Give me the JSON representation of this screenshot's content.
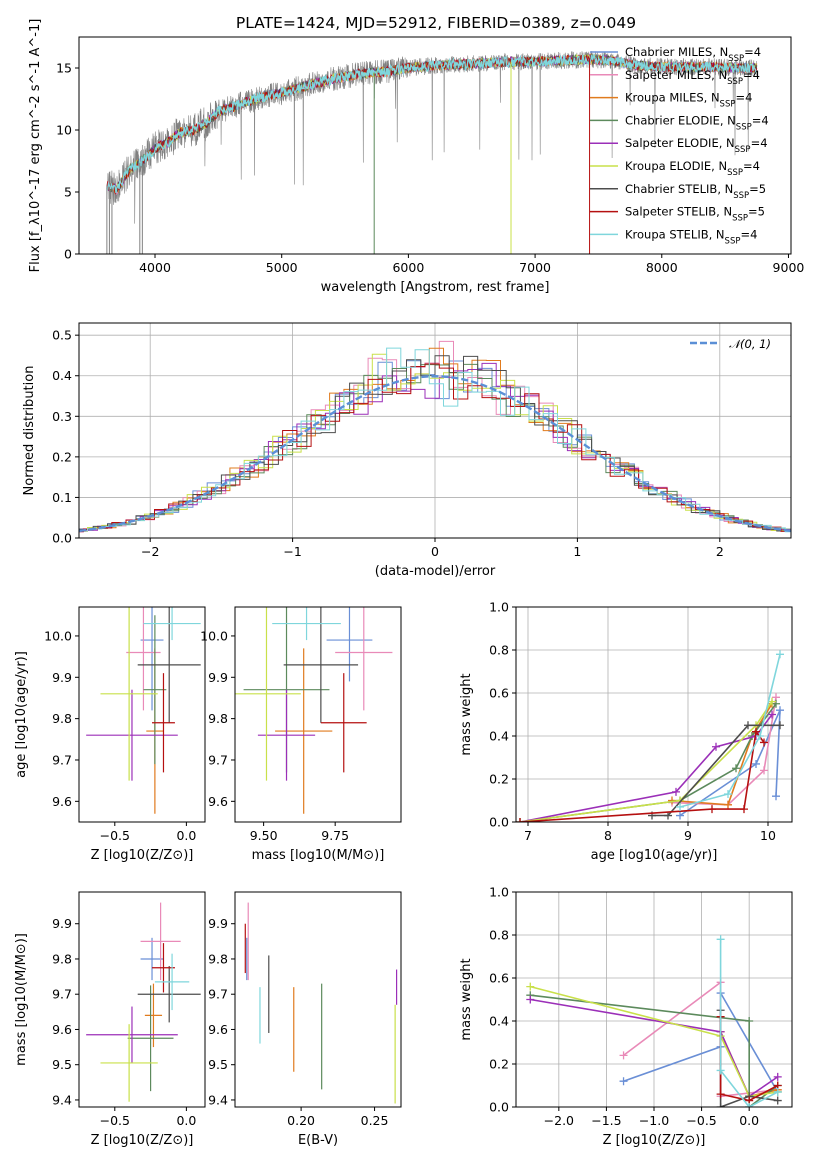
{
  "figure_title": "PLATE=1424, MJD=52912, FIBERID=0389, z=0.049",
  "model_colors": [
    "#6a8fd6",
    "#e98ab8",
    "#e07b1e",
    "#5c8a5c",
    "#9b2fb8",
    "#c9e04a",
    "#4d4d4d",
    "#b51010",
    "#7fd6dc"
  ],
  "chart_data": [
    {
      "panel": "spectrum",
      "type": "line",
      "xlabel": "wavelength [Angstrom, rest frame]",
      "ylabel": "Flux [f_λ10^-17 erg cm^-2 s^-1 A^-1]",
      "xlim": [
        3400,
        9020
      ],
      "ylim": [
        0,
        17.5
      ],
      "x_ticks": [
        4000,
        5000,
        6000,
        7000,
        8000,
        9000
      ],
      "y_ticks": [
        0,
        5,
        10,
        15
      ],
      "grid": false,
      "legend": "top-right",
      "data_color": "#808080",
      "series": [
        {
          "name": "Chabrier MILES, N_SSP=4"
        },
        {
          "name": "Salpeter MILES, N_SSP=4"
        },
        {
          "name": "Kroupa MILES, N_SSP=4"
        },
        {
          "name": "Chabrier ELODIE, N_SSP=4"
        },
        {
          "name": "Salpeter ELODIE, N_SSP=4"
        },
        {
          "name": "Kroupa ELODIE, N_SSP=4"
        },
        {
          "name": "Chabrier STELIB, N_SSP=5"
        },
        {
          "name": "Salpeter STELIB, N_SSP=5"
        },
        {
          "name": "Kroupa STELIB, N_SSP=4"
        }
      ],
      "continuum": {
        "x": [
          3620,
          3700,
          3800,
          3900,
          4000,
          4100,
          4200,
          4300,
          4400,
          4500,
          4600,
          4700,
          4800,
          4900,
          5000,
          5200,
          5400,
          5600,
          5800,
          6000,
          6200,
          6400,
          6600,
          6800,
          7000,
          7200,
          7400,
          7600,
          7800,
          8000,
          8200,
          8400,
          8600,
          8750
        ],
        "y": [
          5.5,
          5.2,
          6.8,
          7.5,
          8.5,
          9.0,
          9.8,
          10.0,
          10.5,
          11.5,
          11.8,
          12.2,
          12.5,
          12.8,
          13.0,
          13.6,
          14.1,
          14.5,
          14.7,
          15.0,
          15.2,
          15.3,
          15.4,
          15.5,
          15.5,
          15.6,
          15.7,
          15.6,
          15.2,
          15.1,
          15.1,
          15.1,
          15.0,
          15.0
        ]
      },
      "dropouts_x": [
        3620,
        3640,
        3660,
        3880,
        3900,
        5730,
        6810,
        7430
      ]
    },
    {
      "panel": "residuals",
      "type": "step",
      "xlabel": "(data-model)/error",
      "ylabel": "Normed distribution",
      "xlim": [
        -2.5,
        2.5
      ],
      "ylim": [
        0,
        0.53
      ],
      "x_ticks": [
        -2,
        -1,
        0,
        1,
        2
      ],
      "y_ticks": [
        0.0,
        0.1,
        0.2,
        0.3,
        0.4,
        0.5
      ],
      "grid": true,
      "legend": "top-right",
      "gauss_label": "𝒩(0, 1)",
      "gauss_color": "#5b8fd6",
      "bin_width": 0.1
    },
    {
      "panel": "age_vs_Z",
      "type": "errorbar",
      "xlabel": "Z [log10(Z/Z⊙)]",
      "ylabel": "age [log10(age/yr)]",
      "xlim": [
        -0.75,
        0.13
      ],
      "ylim": [
        9.55,
        10.07
      ],
      "x_ticks": [
        -0.5,
        0.0
      ],
      "y_ticks": [
        9.6,
        9.7,
        9.8,
        9.9,
        10.0
      ],
      "points": [
        {
          "x": -0.24,
          "xe": 0.08,
          "y": 9.99,
          "ye": 0.17
        },
        {
          "x": -0.3,
          "xe": 0.12,
          "y": 9.96,
          "ye": 0.14
        },
        {
          "x": -0.22,
          "xe": 0.06,
          "y": 9.77,
          "ye": 0.2
        },
        {
          "x": -0.22,
          "xe": 0.08,
          "y": 9.87,
          "ye": 0.18
        },
        {
          "x": -0.38,
          "xe": 0.32,
          "y": 9.76,
          "ye": 0.11
        },
        {
          "x": -0.4,
          "xe": 0.2,
          "y": 9.86,
          "ye": 0.21
        },
        {
          "x": -0.12,
          "xe": 0.22,
          "y": 9.93,
          "ye": 0.14
        },
        {
          "x": -0.16,
          "xe": 0.08,
          "y": 9.79,
          "ye": 0.12
        },
        {
          "x": -0.1,
          "xe": 0.2,
          "y": 10.03,
          "ye": 0.04
        }
      ]
    },
    {
      "panel": "age_vs_mass",
      "type": "errorbar",
      "xlabel": "mass [log10(M/M⊙)]",
      "ylabel": "",
      "xlim": [
        9.4,
        9.98
      ],
      "ylim": [
        9.55,
        10.07
      ],
      "x_ticks": [
        9.5,
        9.75
      ],
      "y_ticks": [
        9.6,
        9.7,
        9.8,
        9.9,
        10.0
      ],
      "points": [
        {
          "x": 9.8,
          "xe": 0.08,
          "y": 9.99,
          "ye": 0.1
        },
        {
          "x": 9.85,
          "xe": 0.1,
          "y": 9.96,
          "ye": 0.14
        },
        {
          "x": 9.64,
          "xe": 0.1,
          "y": 9.77,
          "ye": 0.2
        },
        {
          "x": 9.58,
          "xe": 0.15,
          "y": 9.87,
          "ye": 0.2
        },
        {
          "x": 9.58,
          "xe": 0.1,
          "y": 9.76,
          "ye": 0.11
        },
        {
          "x": 9.51,
          "xe": 0.12,
          "y": 9.86,
          "ye": 0.21
        },
        {
          "x": 9.7,
          "xe": 0.13,
          "y": 9.93,
          "ye": 0.14
        },
        {
          "x": 9.78,
          "xe": 0.08,
          "y": 9.79,
          "ye": 0.12
        },
        {
          "x": 9.65,
          "xe": 0.12,
          "y": 10.03,
          "ye": 0.04
        }
      ]
    },
    {
      "panel": "massweight_vs_age",
      "type": "line",
      "xlabel": "age [log10(age/yr)]",
      "ylabel": "mass weight",
      "xlim": [
        6.85,
        10.3
      ],
      "ylim": [
        0,
        1.0
      ],
      "x_ticks": [
        7,
        8,
        9,
        10
      ],
      "y_ticks": [
        0.0,
        0.2,
        0.4,
        0.6,
        0.8,
        1.0
      ],
      "grid": true,
      "series": [
        {
          "x": [
            8.9,
            9.85,
            10.15,
            10.1
          ],
          "y": [
            0.03,
            0.27,
            0.52,
            0.12
          ]
        },
        {
          "x": [
            8.8,
            9.5,
            9.95,
            10.1
          ],
          "y": [
            0.09,
            0.08,
            0.24,
            0.58
          ]
        },
        {
          "x": [
            8.8,
            9.5,
            9.8,
            10.05
          ],
          "y": [
            0.1,
            0.08,
            0.4,
            0.55
          ]
        },
        {
          "x": [
            6.9,
            8.9,
            9.6,
            9.8,
            10.1
          ],
          "y": [
            0.0,
            0.1,
            0.25,
            0.4,
            0.55
          ]
        },
        {
          "x": [
            6.9,
            8.85,
            9.35,
            9.85,
            10.05
          ],
          "y": [
            0.0,
            0.14,
            0.35,
            0.4,
            0.5
          ]
        },
        {
          "x": [
            6.9,
            8.9,
            9.85,
            10.05
          ],
          "y": [
            0.0,
            0.1,
            0.45,
            0.56
          ]
        },
        {
          "x": [
            8.55,
            8.75,
            9.75,
            10.15
          ],
          "y": [
            0.03,
            0.03,
            0.45,
            0.45
          ]
        },
        {
          "x": [
            6.9,
            9.3,
            9.7,
            9.85,
            9.95
          ],
          "y": [
            0.0,
            0.06,
            0.06,
            0.42,
            0.37
          ]
        },
        {
          "x": [
            8.9,
            9.5,
            9.9,
            10.15
          ],
          "y": [
            0.07,
            0.13,
            0.4,
            0.78
          ]
        }
      ]
    },
    {
      "panel": "mass_vs_Z",
      "type": "errorbar",
      "xlabel": "Z [log10(Z/Z⊙)]",
      "ylabel": "mass [log10(M/M⊙)]",
      "xlim": [
        -0.75,
        0.13
      ],
      "ylim": [
        9.38,
        9.99
      ],
      "x_ticks": [
        -0.5,
        0.0
      ],
      "y_ticks": [
        9.4,
        9.5,
        9.6,
        9.7,
        9.8,
        9.9
      ],
      "points": [
        {
          "x": -0.24,
          "xe": 0.08,
          "y": 9.8,
          "ye": 0.06
        },
        {
          "x": -0.18,
          "xe": 0.14,
          "y": 9.85,
          "ye": 0.11
        },
        {
          "x": -0.23,
          "xe": 0.06,
          "y": 9.64,
          "ye": 0.09
        },
        {
          "x": -0.25,
          "xe": 0.16,
          "y": 9.575,
          "ye": 0.15
        },
        {
          "x": -0.38,
          "xe": 0.32,
          "y": 9.585,
          "ye": 0.08
        },
        {
          "x": -0.4,
          "xe": 0.2,
          "y": 9.505,
          "ye": 0.11
        },
        {
          "x": -0.12,
          "xe": 0.22,
          "y": 9.7,
          "ye": 0.08
        },
        {
          "x": -0.16,
          "xe": 0.08,
          "y": 9.775,
          "ye": 0.07
        },
        {
          "x": -0.1,
          "xe": 0.12,
          "y": 9.735,
          "ye": 0.08
        }
      ]
    },
    {
      "panel": "mass_vs_ebv",
      "type": "errorbar",
      "xlabel": "E(B-V)",
      "ylabel": "",
      "xlim": [
        0.155,
        0.268
      ],
      "ylim": [
        9.38,
        9.99
      ],
      "x_ticks": [
        0.2,
        0.25
      ],
      "y_ticks": [
        9.4,
        9.5,
        9.6,
        9.7,
        9.8,
        9.9
      ],
      "points": [
        {
          "x": 0.163,
          "xe": 0.0,
          "y": 9.8,
          "ye": 0.06
        },
        {
          "x": 0.164,
          "xe": 0.0,
          "y": 9.85,
          "ye": 0.11
        },
        {
          "x": 0.195,
          "xe": 0.0,
          "y": 9.6,
          "ye": 0.12
        },
        {
          "x": 0.214,
          "xe": 0.0,
          "y": 9.58,
          "ye": 0.15
        },
        {
          "x": 0.265,
          "xe": 0.0,
          "y": 9.72,
          "ye": 0.05
        },
        {
          "x": 0.264,
          "xe": 0.0,
          "y": 9.53,
          "ye": 0.14
        },
        {
          "x": 0.178,
          "xe": 0.0,
          "y": 9.7,
          "ye": 0.11
        },
        {
          "x": 0.162,
          "xe": 0.0,
          "y": 9.83,
          "ye": 0.07
        },
        {
          "x": 0.172,
          "xe": 0.0,
          "y": 9.64,
          "ye": 0.08
        }
      ]
    },
    {
      "panel": "massweight_vs_Z",
      "type": "line",
      "xlabel": "Z [log10(Z/Z⊙)]",
      "ylabel": "mass weight",
      "xlim": [
        -2.45,
        0.45
      ],
      "ylim": [
        0,
        1.0
      ],
      "x_ticks": [
        -2.0,
        -1.5,
        -1.0,
        -0.5,
        0.0
      ],
      "y_ticks": [
        0.0,
        0.2,
        0.4,
        0.6,
        0.8,
        1.0
      ],
      "grid": true,
      "series": [
        {
          "x": [
            -1.32,
            -0.3,
            -0.3,
            0.3
          ],
          "y": [
            0.12,
            0.28,
            0.53,
            0.07
          ]
        },
        {
          "x": [
            -1.32,
            -0.3,
            -0.3,
            0.3
          ],
          "y": [
            0.24,
            0.58,
            0.05,
            0.08
          ]
        },
        {
          "x": [
            -0.3,
            0.0,
            0.3
          ],
          "y": [
            0.35,
            0.05,
            0.08
          ]
        },
        {
          "x": [
            -2.3,
            0.0,
            0.0,
            0.3
          ],
          "y": [
            0.52,
            0.4,
            0.0,
            0.1
          ]
        },
        {
          "x": [
            -2.3,
            -0.3,
            0.0,
            0.3
          ],
          "y": [
            0.5,
            0.35,
            0.05,
            0.14
          ]
        },
        {
          "x": [
            -2.3,
            -0.3,
            0.0,
            0.3
          ],
          "y": [
            0.56,
            0.33,
            0.05,
            0.07
          ]
        },
        {
          "x": [
            -0.3,
            -0.3,
            0.0,
            0.3
          ],
          "y": [
            0.45,
            0.0,
            0.05,
            0.03
          ]
        },
        {
          "x": [
            -0.3,
            -0.3,
            0.0,
            0.3
          ],
          "y": [
            0.42,
            0.06,
            0.03,
            0.1
          ]
        },
        {
          "x": [
            -0.3,
            -0.3,
            0.0,
            0.3
          ],
          "y": [
            0.78,
            0.17,
            0.0,
            0.07
          ]
        }
      ]
    }
  ]
}
